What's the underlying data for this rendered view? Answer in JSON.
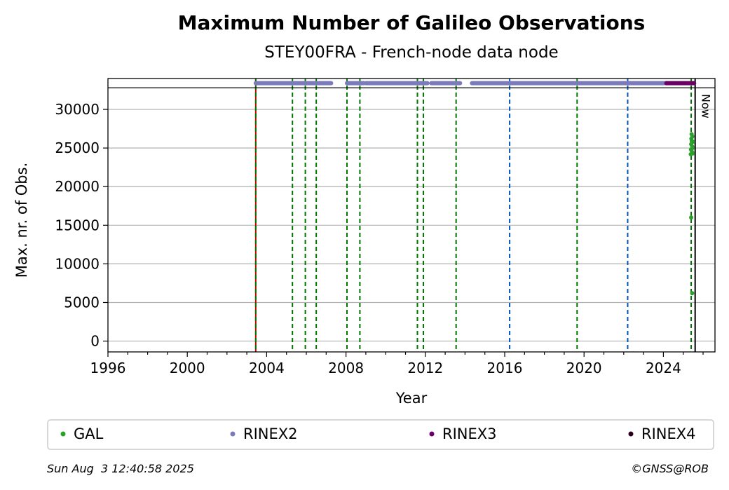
{
  "chart_data": {
    "type": "scatter",
    "title": "Maximum Number of Galileo Observations",
    "subtitle": "STEY00FRA - French-node data node",
    "xlabel": "Year",
    "ylabel": "Max. nr. of Obs.",
    "xlim": [
      1996.0,
      2026.6
    ],
    "ylim": [
      -1400,
      34000
    ],
    "x_ticks": [
      1996,
      2000,
      2004,
      2008,
      2012,
      2016,
      2020,
      2024
    ],
    "y_ticks": [
      0,
      5000,
      10000,
      15000,
      20000,
      25000,
      30000
    ],
    "grid": "horizontal",
    "now_label": "Now",
    "now_x": 2025.6,
    "top_band_y": 33400,
    "band_line_y": 32800,
    "vlines": [
      {
        "x": 2003.45,
        "color": "#cc0000",
        "style": "solid"
      },
      {
        "x": 2003.45,
        "color": "#007700",
        "style": "dashed"
      },
      {
        "x": 2005.3,
        "color": "#007700",
        "style": "dashed"
      },
      {
        "x": 2005.95,
        "color": "#007700",
        "style": "dashed"
      },
      {
        "x": 2006.5,
        "color": "#007700",
        "style": "dashed"
      },
      {
        "x": 2008.05,
        "color": "#007700",
        "style": "dashed"
      },
      {
        "x": 2008.7,
        "color": "#007700",
        "style": "dashed"
      },
      {
        "x": 2011.6,
        "color": "#007700",
        "style": "dashed"
      },
      {
        "x": 2011.9,
        "color": "#007700",
        "style": "dashed"
      },
      {
        "x": 2013.55,
        "color": "#007700",
        "style": "dashed"
      },
      {
        "x": 2016.25,
        "color": "#0055bb",
        "style": "dashed"
      },
      {
        "x": 2019.65,
        "color": "#007700",
        "style": "dashed"
      },
      {
        "x": 2022.2,
        "color": "#0055bb",
        "style": "dashed"
      },
      {
        "x": 2025.4,
        "color": "#007700",
        "style": "dashed"
      },
      {
        "x": 2025.6,
        "color": "#000000",
        "style": "solid"
      }
    ],
    "series": [
      {
        "name": "GAL",
        "color": "#2ca02c",
        "points": [
          [
            2025.38,
            24200
          ],
          [
            2025.39,
            24800
          ],
          [
            2025.4,
            25500
          ],
          [
            2025.41,
            26200
          ],
          [
            2025.42,
            26800
          ],
          [
            2025.43,
            25900
          ],
          [
            2025.44,
            24500
          ],
          [
            2025.45,
            25200
          ],
          [
            2025.46,
            26500
          ],
          [
            2025.47,
            25000
          ],
          [
            2025.48,
            24300
          ],
          [
            2025.49,
            25800
          ],
          [
            2025.4,
            16000
          ],
          [
            2025.45,
            6200
          ],
          [
            2025.5,
            33400
          ]
        ]
      },
      {
        "name": "RINEX2",
        "color": "#7b7bbb",
        "segments": [
          [
            2003.45,
            2007.25
          ],
          [
            2008.05,
            2008.9
          ],
          [
            2009.0,
            2011.5
          ],
          [
            2011.55,
            2012.1
          ],
          [
            2012.3,
            2013.75
          ],
          [
            2014.35,
            2024.2
          ]
        ]
      },
      {
        "name": "RINEX3",
        "color": "#6a0066",
        "segments": [
          [
            2024.15,
            2025.55
          ]
        ]
      },
      {
        "name": "RINEX4",
        "color": "#2a0020",
        "segments": []
      }
    ],
    "legend_placement": "bottom"
  },
  "footer": {
    "timestamp": "Sun Aug  3 12:40:58 2025",
    "credit": "©GNSS@ROB"
  }
}
